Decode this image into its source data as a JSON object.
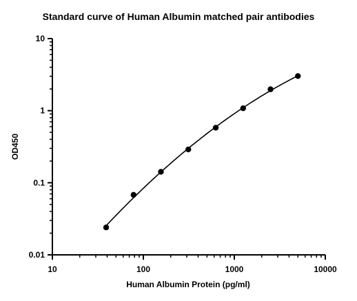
{
  "chart_data": {
    "type": "scatter",
    "title": "Standard curve of Human Albumin matched pair antibodies",
    "xlabel": "Human Albumin Protein (pg/ml)",
    "ylabel": "OD450",
    "x_scale": "log",
    "y_scale": "log",
    "xlim": [
      10,
      10000
    ],
    "ylim": [
      0.01,
      10
    ],
    "x_ticks": [
      10,
      100,
      1000,
      10000
    ],
    "x_tick_labels": [
      "10",
      "100",
      "1000",
      "10000"
    ],
    "y_ticks": [
      0.01,
      0.1,
      1,
      10
    ],
    "y_tick_labels": [
      "0.01",
      "0.1",
      "1",
      "10"
    ],
    "grid": false,
    "legend": "none",
    "fit_line": true,
    "series": [
      {
        "x": [
          39,
          78,
          156,
          312,
          625,
          1250,
          2500,
          5000
        ],
        "y": [
          0.024,
          0.068,
          0.142,
          0.29,
          0.58,
          1.08,
          1.98,
          3.02
        ]
      }
    ],
    "colors": {
      "points": "#000000",
      "curve": "#000000",
      "axes": "#000000"
    }
  }
}
